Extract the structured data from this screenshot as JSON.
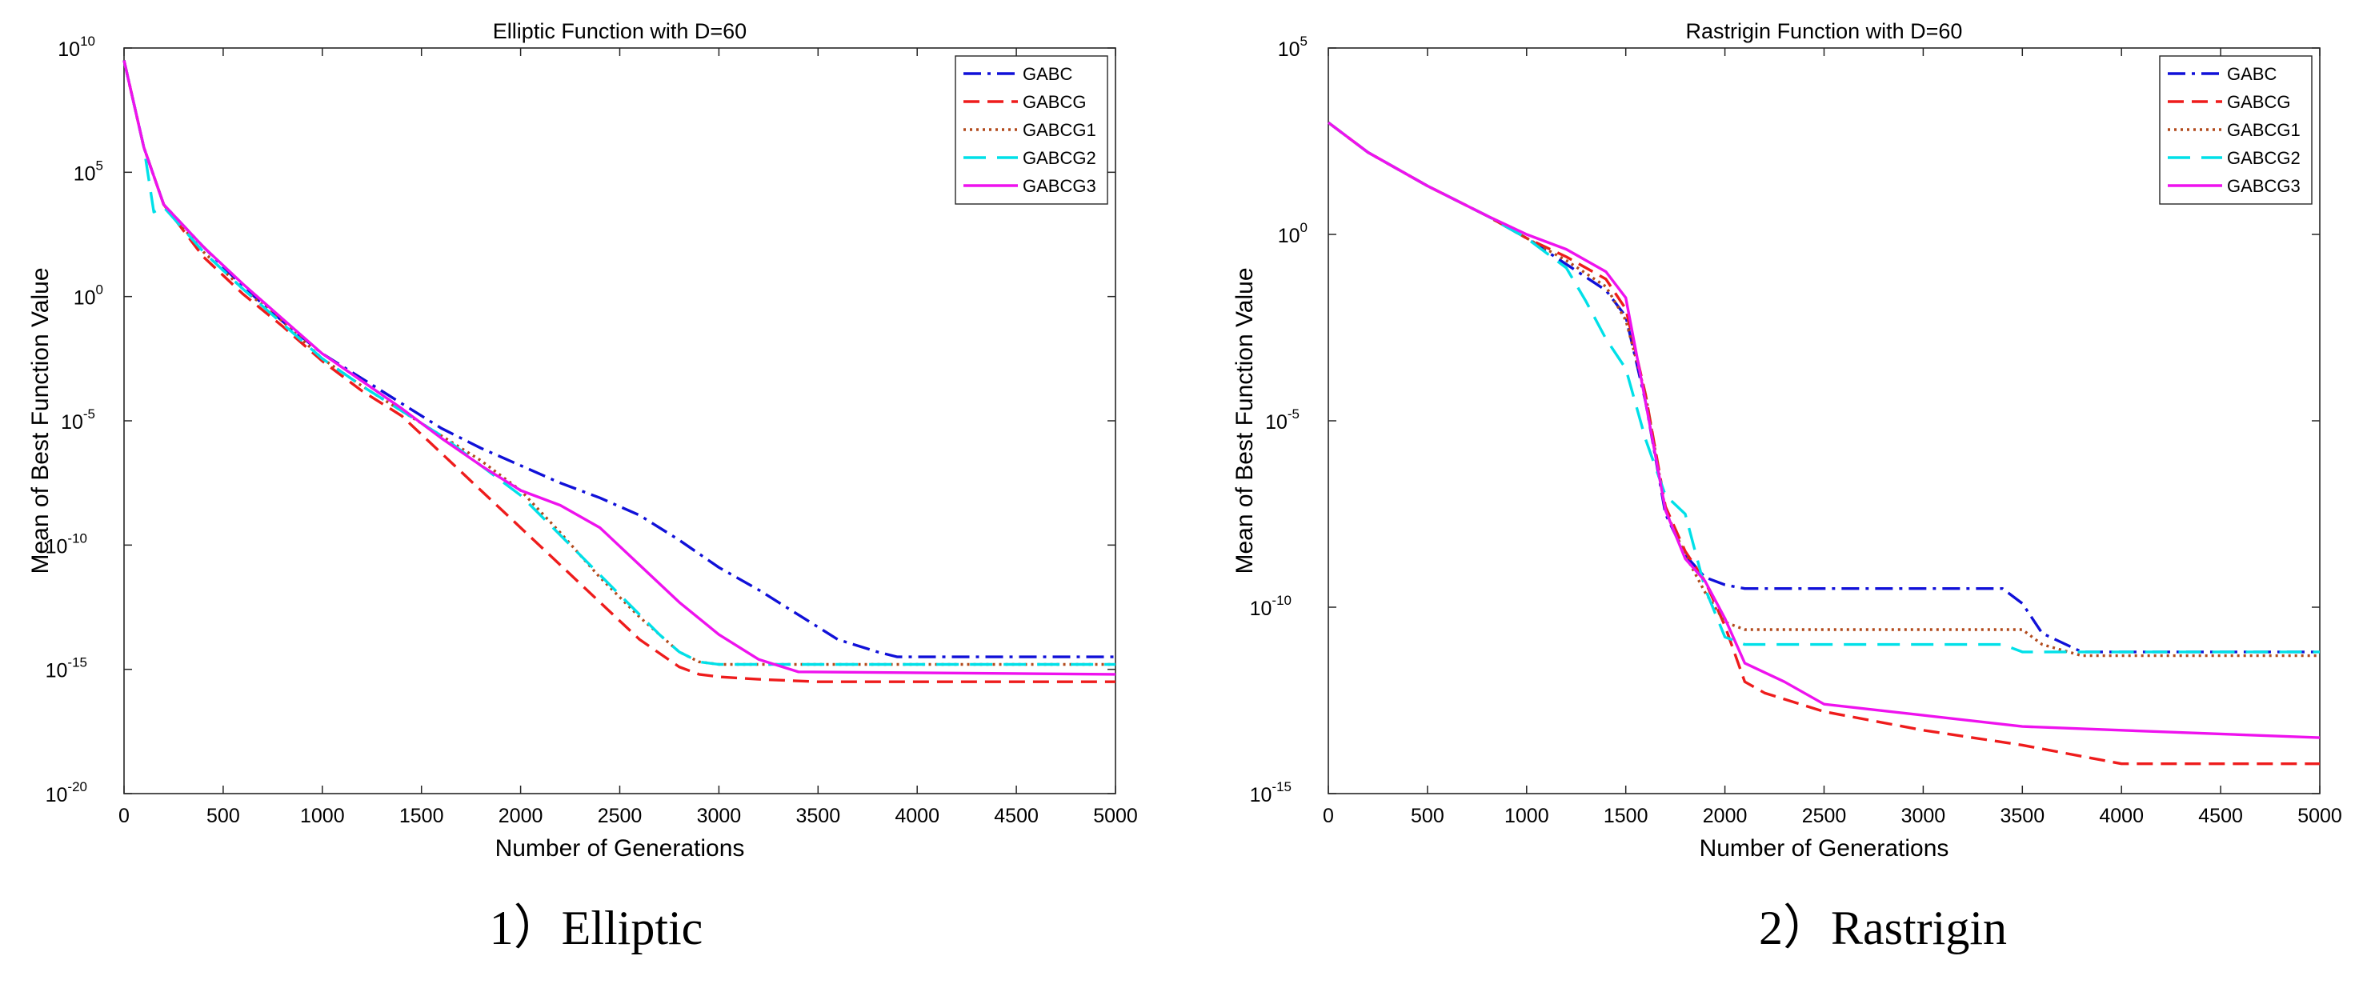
{
  "chart_data": [
    {
      "type": "line",
      "title": "Elliptic Function with D=60",
      "xlabel": "Number of Generations",
      "ylabel": "Mean of Best Function Value",
      "caption": "1）Elliptic",
      "xlim": [
        0,
        5000
      ],
      "ylim_log10": [
        -20,
        10
      ],
      "yscale": "log",
      "x_ticks": [
        0,
        500,
        1000,
        1500,
        2000,
        2500,
        3000,
        3500,
        4000,
        4500,
        5000
      ],
      "y_tick_exponents": [
        10,
        5,
        0,
        -5,
        -10,
        -15,
        -20
      ],
      "y_tick_labels": [
        "10^10",
        "10^5",
        "10^0",
        "10^-5",
        "10^-10",
        "10^-15",
        "10^-20"
      ],
      "legend_position": "top-right",
      "series": [
        {
          "name": "GABC",
          "color": "#1010d8",
          "dash": "dashdot",
          "x": [
            0,
            100,
            200,
            400,
            600,
            800,
            1000,
            1200,
            1400,
            1600,
            1800,
            2000,
            2200,
            2400,
            2600,
            2800,
            3000,
            3200,
            3400,
            3600,
            3800,
            3900,
            4000,
            5000
          ],
          "log10y": [
            9.5,
            6,
            3.7,
            2,
            0.4,
            -1,
            -2.3,
            -3.3,
            -4.3,
            -5.3,
            -6.1,
            -6.8,
            -7.5,
            -8.1,
            -8.8,
            -9.8,
            -10.9,
            -11.8,
            -12.8,
            -13.8,
            -14.3,
            -14.5,
            -14.5,
            -14.5
          ]
        },
        {
          "name": "GABCG",
          "color": "#ee1c1c",
          "dash": "dashed",
          "x": [
            0,
            100,
            200,
            400,
            600,
            800,
            1000,
            1200,
            1400,
            1600,
            1800,
            2000,
            2200,
            2400,
            2600,
            2800,
            2900,
            3000,
            3200,
            3500,
            5000
          ],
          "log10y": [
            9.5,
            6,
            3.7,
            1.6,
            0.1,
            -1.2,
            -2.6,
            -3.8,
            -4.8,
            -6.3,
            -7.8,
            -9.3,
            -10.8,
            -12.3,
            -13.8,
            -14.9,
            -15.2,
            -15.3,
            -15.4,
            -15.5,
            -15.5
          ]
        },
        {
          "name": "GABCG1",
          "color": "#b24a1c",
          "dash": "dotted",
          "x": [
            0,
            100,
            200,
            400,
            600,
            800,
            1000,
            1200,
            1400,
            1600,
            1800,
            2000,
            2200,
            2400,
            2600,
            2800,
            2900,
            3000,
            5000
          ],
          "log10y": [
            9.5,
            6,
            3.7,
            1.8,
            0.3,
            -1,
            -2.5,
            -3.6,
            -4.6,
            -5.6,
            -6.6,
            -7.8,
            -9.5,
            -11.3,
            -12.9,
            -14.3,
            -14.7,
            -14.8,
            -14.8
          ]
        },
        {
          "name": "GABCG2",
          "color": "#00e0e8",
          "dash": "longdash",
          "x": [
            0,
            100,
            150,
            200,
            400,
            600,
            800,
            1000,
            1200,
            1400,
            1600,
            1800,
            2000,
            2200,
            2400,
            2600,
            2700,
            2800,
            2900,
            3000,
            5000
          ],
          "log10y": [
            9.5,
            6,
            3.4,
            3.6,
            1.8,
            0.3,
            -1.1,
            -2.5,
            -3.6,
            -4.6,
            -5.6,
            -6.8,
            -8,
            -9.6,
            -11.2,
            -12.8,
            -13.6,
            -14.3,
            -14.7,
            -14.8,
            -14.8
          ]
        },
        {
          "name": "GABCG3",
          "color": "#ee12ee",
          "dash": "solid",
          "x": [
            0,
            100,
            200,
            400,
            600,
            800,
            1000,
            1200,
            1400,
            1600,
            1800,
            2000,
            2200,
            2400,
            2600,
            2800,
            3000,
            3200,
            3400,
            5000
          ],
          "log10y": [
            9.5,
            6,
            3.7,
            2,
            0.5,
            -0.9,
            -2.3,
            -3.4,
            -4.5,
            -5.7,
            -6.8,
            -7.8,
            -8.4,
            -9.3,
            -10.8,
            -12.3,
            -13.6,
            -14.6,
            -15.1,
            -15.2
          ]
        }
      ]
    },
    {
      "type": "line",
      "title": "Rastrigin Function with D=60",
      "xlabel": "Number of Generations",
      "ylabel": "Mean of Best Function Value",
      "caption": "2）Rastrigin",
      "xlim": [
        0,
        5000
      ],
      "ylim_log10": [
        -15,
        5
      ],
      "yscale": "log",
      "x_ticks": [
        0,
        500,
        1000,
        1500,
        2000,
        2500,
        3000,
        3500,
        4000,
        4500,
        5000
      ],
      "y_tick_exponents": [
        5,
        0,
        -5,
        -10,
        -15
      ],
      "y_tick_labels": [
        "10^5",
        "10^0",
        "10^-5",
        "10^-10",
        "10^-15"
      ],
      "legend_position": "top-right",
      "series": [
        {
          "name": "GABC",
          "color": "#1010d8",
          "dash": "dashdot",
          "x": [
            0,
            200,
            500,
            800,
            1000,
            1200,
            1400,
            1500,
            1600,
            1700,
            1800,
            1900,
            2000,
            2100,
            3400,
            3500,
            3600,
            3800,
            5000
          ],
          "log10y": [
            3,
            2.2,
            1.3,
            0.5,
            -0.1,
            -0.8,
            -1.5,
            -2.2,
            -4.5,
            -7.5,
            -8.6,
            -9.2,
            -9.4,
            -9.5,
            -9.5,
            -9.9,
            -10.7,
            -11.2,
            -11.2
          ]
        },
        {
          "name": "GABCG",
          "color": "#ee1c1c",
          "dash": "dashed",
          "x": [
            0,
            200,
            500,
            800,
            1000,
            1200,
            1400,
            1500,
            1600,
            1700,
            1800,
            1900,
            2000,
            2100,
            2200,
            2500,
            3000,
            3500,
            3800,
            4000,
            5000
          ],
          "log10y": [
            3,
            2.2,
            1.3,
            0.5,
            -0.1,
            -0.6,
            -1.2,
            -2,
            -4.3,
            -7.3,
            -8.5,
            -9.3,
            -10.5,
            -12,
            -12.3,
            -12.8,
            -13.3,
            -13.7,
            -14,
            -14.2,
            -14.2
          ]
        },
        {
          "name": "GABCG1",
          "color": "#b24a1c",
          "dash": "dotted",
          "x": [
            0,
            200,
            500,
            800,
            1000,
            1200,
            1400,
            1500,
            1600,
            1700,
            1800,
            1900,
            2000,
            2100,
            3500,
            3600,
            3800,
            5000
          ],
          "log10y": [
            3,
            2.2,
            1.3,
            0.5,
            -0.1,
            -0.7,
            -1.4,
            -2.3,
            -4.3,
            -7.4,
            -8.6,
            -9.6,
            -10.4,
            -10.6,
            -10.6,
            -11,
            -11.3,
            -11.3
          ]
        },
        {
          "name": "GABCG2",
          "color": "#00e0e8",
          "dash": "longdash",
          "x": [
            0,
            200,
            500,
            800,
            1000,
            1200,
            1300,
            1400,
            1500,
            1600,
            1700,
            1800,
            1900,
            2000,
            2100,
            3400,
            3500,
            5000
          ],
          "log10y": [
            3,
            2.2,
            1.3,
            0.5,
            -0.1,
            -0.9,
            -1.8,
            -2.8,
            -3.6,
            -5.5,
            -7,
            -7.5,
            -9.5,
            -10.8,
            -11,
            -11,
            -11.2,
            -11.2
          ]
        },
        {
          "name": "GABCG3",
          "color": "#ee12ee",
          "dash": "solid",
          "x": [
            0,
            200,
            500,
            800,
            1000,
            1200,
            1400,
            1500,
            1600,
            1700,
            1800,
            1900,
            2000,
            2100,
            2300,
            2500,
            3000,
            3500,
            4000,
            5000
          ],
          "log10y": [
            3,
            2.2,
            1.3,
            0.5,
            0,
            -0.4,
            -1,
            -1.7,
            -4.5,
            -7.4,
            -8.7,
            -9.3,
            -10.3,
            -11.5,
            -12,
            -12.6,
            -12.9,
            -13.2,
            -13.3,
            -13.5
          ]
        }
      ]
    }
  ]
}
